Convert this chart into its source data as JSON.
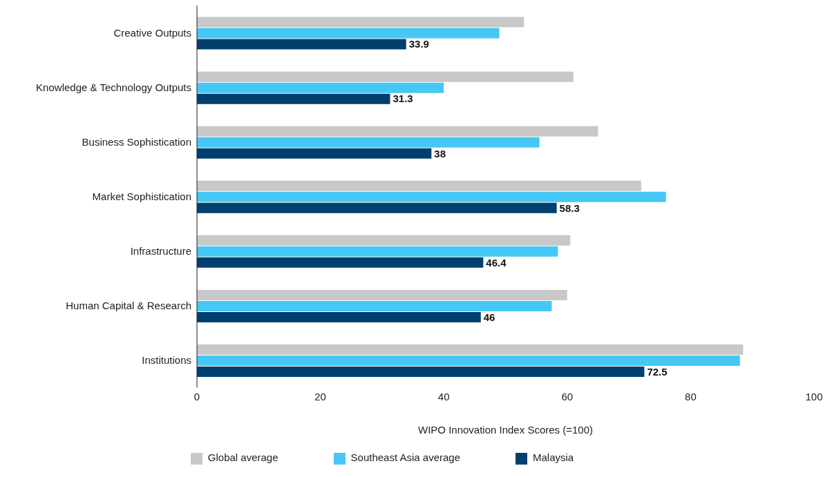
{
  "chart_data": {
    "type": "bar",
    "orientation": "horizontal",
    "xlabel": "WIPO Innovation Index Scores (=100)",
    "categories": [
      "Creative Outputs",
      "Knowledge & Technology Outputs",
      "Business Sophistication",
      "Market Sophistication",
      "Infrastructure",
      "Human Capital & Research",
      "Institutions"
    ],
    "series": [
      {
        "name": "Global average",
        "color": "#c8c8c8",
        "values": [
          53,
          61,
          65,
          72,
          60.5,
          60,
          88.5
        ]
      },
      {
        "name": "Southeast Asia average",
        "color": "#45c8f5",
        "values": [
          49,
          40,
          55.5,
          76,
          58.5,
          57.5,
          88
        ]
      },
      {
        "name": "Malaysia",
        "color": "#003f6e",
        "values": [
          33.9,
          31.3,
          38,
          58.3,
          46.4,
          46,
          72.5
        ],
        "value_labels": [
          "33.9",
          "31.3",
          "38",
          "58.3",
          "46.4",
          "46",
          "72.5"
        ]
      }
    ],
    "xlim": [
      0,
      100
    ],
    "xticks": [
      0,
      20,
      40,
      60,
      80,
      100
    ],
    "legend": "bottom"
  }
}
